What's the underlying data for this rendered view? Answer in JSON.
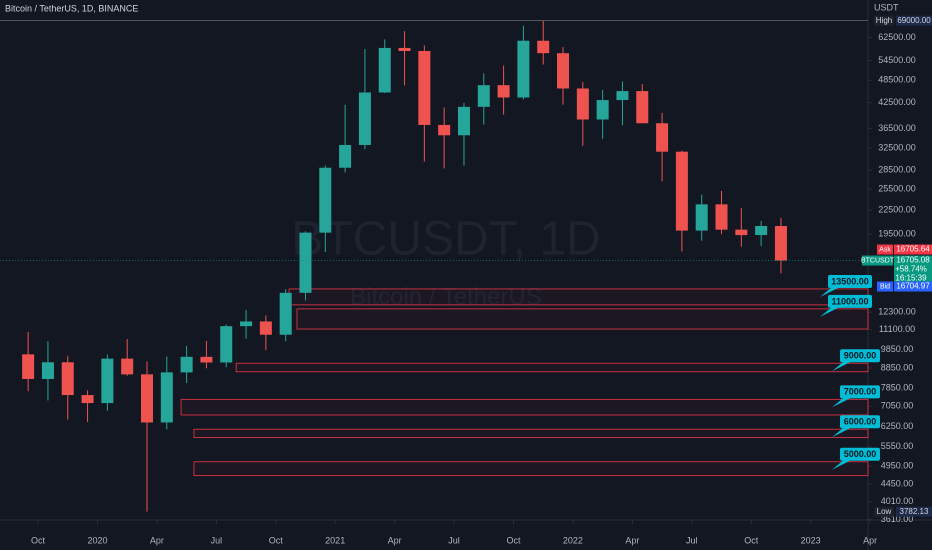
{
  "chart_data": {
    "type": "candlestick",
    "title": "Bitcoin / TetherUS, 1D, BINANCE",
    "watermark": "BTCUSDT, 1D",
    "watermark_subtitle": "Bitcoin / TetherUS",
    "unit": "USDT",
    "log_scale": true,
    "grid": false,
    "up_color": "#26a69a",
    "down_color": "#ef5350",
    "x": [
      -0.5,
      0.5,
      1.5,
      2.5,
      3.5,
      4.5,
      5.5,
      6.5,
      7.5,
      8.5,
      9.5,
      10.5,
      11.5,
      12.5,
      13.5,
      14.5,
      15.5,
      16.5,
      17.5,
      18.5,
      19.5,
      20.5,
      21.5,
      22.5,
      23.5,
      24.5,
      25.5,
      26.5,
      27.5,
      28.5,
      29.5,
      30.5,
      31.5,
      32.5,
      33.5,
      34.5,
      35.5,
      36.5,
      37.5
    ],
    "open": [
      9590,
      8290,
      9150,
      7540,
      7190,
      9350,
      8520,
      6410,
      8620,
      9450,
      9140,
      11330,
      11650,
      10770,
      13800,
      19700,
      28920,
      33090,
      45140,
      58740,
      57690,
      37250,
      35040,
      41460,
      47130,
      43820,
      61300,
      56950,
      46220,
      38470,
      43160,
      45510,
      37630,
      31800,
      19940,
      23290,
      20050,
      19420,
      20490
    ],
    "high": [
      10950,
      10370,
      9510,
      7750,
      9580,
      10500,
      9190,
      9470,
      10070,
      10380,
      11440,
      12470,
      12070,
      14100,
      19860,
      29300,
      41950,
      58350,
      61790,
      64850,
      59590,
      41330,
      42450,
      50500,
      52920,
      67000,
      69000,
      59050,
      47990,
      45820,
      48190,
      47440,
      40020,
      31980,
      24670,
      25210,
      22800,
      21100,
      21480
    ],
    "low": [
      7710,
      7300,
      6520,
      6430,
      6870,
      8450,
      3782.13,
      6150,
      8100,
      8830,
      8890,
      10520,
      9820,
      10370,
      13190,
      17570,
      28130,
      32300,
      45000,
      47050,
      30000,
      28800,
      29280,
      37330,
      39600,
      43280,
      53260,
      42000,
      32920,
      34320,
      37160,
      37580,
      26700,
      17620,
      18780,
      19520,
      18120,
      18190,
      15480
    ],
    "close": [
      8290,
      9150,
      7540,
      7190,
      9350,
      8520,
      6410,
      8620,
      9450,
      9140,
      11330,
      11650,
      10770,
      13800,
      19700,
      28920,
      33090,
      45140,
      58740,
      57690,
      37250,
      35040,
      41460,
      47130,
      43820,
      61300,
      56950,
      46220,
      38470,
      43160,
      45510,
      37630,
      31800,
      19940,
      23290,
      20050,
      19420,
      20490,
      16705.08
    ],
    "xlim": [
      -1.92,
      42.5
    ],
    "xticks": [
      {
        "value": 0,
        "label": "Oct"
      },
      {
        "value": 3,
        "label": "2020"
      },
      {
        "value": 6,
        "label": "Apr"
      },
      {
        "value": 9,
        "label": "Jul"
      },
      {
        "value": 12,
        "label": "Oct"
      },
      {
        "value": 15,
        "label": "2021"
      },
      {
        "value": 18,
        "label": "Apr"
      },
      {
        "value": 21,
        "label": "Jul"
      },
      {
        "value": 24,
        "label": "Oct"
      },
      {
        "value": 27,
        "label": "2022"
      },
      {
        "value": 30,
        "label": "Apr"
      },
      {
        "value": 33,
        "label": "Jul"
      },
      {
        "value": 36,
        "label": "Oct"
      },
      {
        "value": 39,
        "label": "2023"
      },
      {
        "value": 42,
        "label": "Apr"
      }
    ],
    "ylim": [
      3600,
      78000
    ],
    "yticks": [
      {
        "value": 62500,
        "label": "62500.00"
      },
      {
        "value": 54500,
        "label": "54500.00"
      },
      {
        "value": 48500,
        "label": "48500.00"
      },
      {
        "value": 42500,
        "label": "42500.00"
      },
      {
        "value": 36500,
        "label": "36500.00"
      },
      {
        "value": 32500,
        "label": "32500.00"
      },
      {
        "value": 28500,
        "label": "28500.00"
      },
      {
        "value": 25500,
        "label": "25500.00"
      },
      {
        "value": 22500,
        "label": "22500.00"
      },
      {
        "value": 19500,
        "label": "19500.00"
      },
      {
        "value": 12300,
        "label": "12300.00"
      },
      {
        "value": 11100,
        "label": "11100.00"
      },
      {
        "value": 9850,
        "label": "9850.00"
      },
      {
        "value": 8850,
        "label": "8850.00"
      },
      {
        "value": 7850,
        "label": "7850.00"
      },
      {
        "value": 7050,
        "label": "7050.00"
      },
      {
        "value": 6250,
        "label": "6250.00"
      },
      {
        "value": 5550,
        "label": "5550.00"
      },
      {
        "value": 4950,
        "label": "4950.00"
      },
      {
        "value": 4450,
        "label": "4450.00"
      },
      {
        "value": 4010,
        "label": "4010.00"
      },
      {
        "value": 3610,
        "label": "3610.00"
      }
    ],
    "high_marker": {
      "label": "High",
      "value": {
        "value": 69000,
        "label": "69000.00"
      }
    },
    "low_marker": {
      "label": "Low",
      "value": {
        "value": 3782.13,
        "label": "3782.13"
      }
    },
    "quote": {
      "ask_label": "Ask",
      "ask": {
        "value": 16705.64,
        "label": "16705.64"
      },
      "symbol": "BTCUSDT",
      "last": {
        "value": 16705.08,
        "label": "16705.08"
      },
      "change": {
        "value": 58.74,
        "label": "+58.74%"
      },
      "countdown": "16:15:39",
      "bid_label": "Bid",
      "bid": {
        "value": 16704.97,
        "label": "16704.97"
      }
    },
    "zones": [
      {
        "low": 12850,
        "high": 14120,
        "start": 12.67,
        "label": {
          "value": 13500,
          "label": "13500.00"
        }
      },
      {
        "low": 11140,
        "high": 12550,
        "start": 13.07,
        "label": {
          "value": 11000,
          "label": "11000.00"
        }
      },
      {
        "low": 8650,
        "high": 9100,
        "start": 10.0,
        "label": {
          "value": 9000,
          "label": "9000.00"
        }
      },
      {
        "low": 6700,
        "high": 7350,
        "start": 7.22,
        "label": {
          "value": 7000,
          "label": "7000.00"
        }
      },
      {
        "low": 5860,
        "high": 6160,
        "start": 7.87,
        "label": {
          "value": 6000,
          "label": "6000.00"
        }
      },
      {
        "low": 4680,
        "high": 5080,
        "start": 7.87,
        "label": {
          "value": 5000,
          "label": "5000.00"
        }
      }
    ]
  }
}
